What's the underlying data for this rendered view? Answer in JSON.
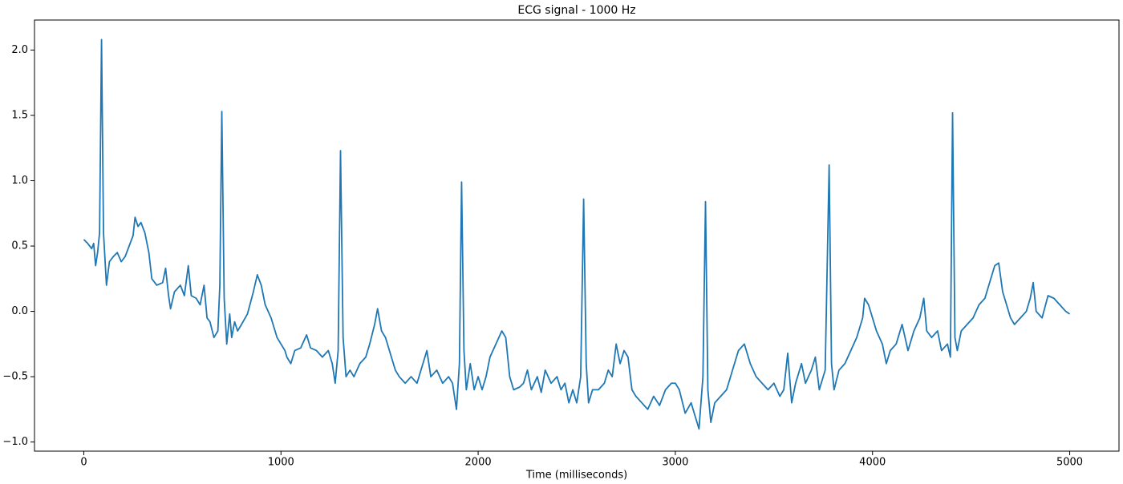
{
  "chart_data": {
    "type": "line",
    "title": "ECG signal - 1000 Hz",
    "xlabel": "Time (milliseconds)",
    "x": [
      0,
      20,
      40,
      50,
      60,
      70,
      80,
      90,
      100,
      115,
      130,
      150,
      170,
      190,
      210,
      230,
      250,
      260,
      275,
      290,
      310,
      330,
      345,
      370,
      400,
      415,
      430,
      440,
      460,
      490,
      510,
      530,
      545,
      570,
      590,
      610,
      625,
      640,
      660,
      680,
      690,
      700,
      712,
      725,
      740,
      750,
      765,
      780,
      800,
      830,
      860,
      880,
      900,
      920,
      950,
      980,
      1000,
      1020,
      1030,
      1050,
      1070,
      1100,
      1130,
      1150,
      1180,
      1210,
      1240,
      1260,
      1275,
      1290,
      1302,
      1315,
      1330,
      1350,
      1370,
      1400,
      1430,
      1450,
      1475,
      1490,
      1510,
      1530,
      1560,
      1580,
      1600,
      1630,
      1660,
      1690,
      1710,
      1740,
      1760,
      1790,
      1820,
      1850,
      1870,
      1890,
      1905,
      1916,
      1928,
      1940,
      1960,
      1980,
      2000,
      2020,
      2040,
      2060,
      2090,
      2120,
      2140,
      2160,
      2180,
      2210,
      2230,
      2250,
      2270,
      2300,
      2320,
      2340,
      2370,
      2400,
      2420,
      2440,
      2460,
      2480,
      2500,
      2520,
      2535,
      2548,
      2560,
      2580,
      2610,
      2640,
      2660,
      2680,
      2700,
      2720,
      2740,
      2760,
      2780,
      2800,
      2830,
      2860,
      2890,
      2920,
      2950,
      2980,
      3000,
      3020,
      3050,
      3080,
      3100,
      3120,
      3140,
      3153,
      3165,
      3180,
      3200,
      3230,
      3260,
      3290,
      3320,
      3350,
      3380,
      3410,
      3440,
      3470,
      3500,
      3530,
      3550,
      3570,
      3590,
      3610,
      3640,
      3660,
      3690,
      3710,
      3730,
      3760,
      3780,
      3792,
      3805,
      3830,
      3860,
      3890,
      3920,
      3950,
      3960,
      3980,
      4000,
      4020,
      4050,
      4070,
      4090,
      4120,
      4150,
      4180,
      4210,
      4240,
      4260,
      4275,
      4300,
      4330,
      4350,
      4380,
      4395,
      4406,
      4418,
      4430,
      4450,
      4480,
      4510,
      4540,
      4570,
      4600,
      4620,
      4640,
      4660,
      4680,
      4700,
      4720,
      4750,
      4780,
      4800,
      4815,
      4830,
      4860,
      4890,
      4920,
      4950,
      4980,
      5000
    ],
    "series": [
      {
        "name": "ECG",
        "color": "#1f77b4",
        "values": [
          0.55,
          0.52,
          0.48,
          0.52,
          0.35,
          0.45,
          0.6,
          2.08,
          0.6,
          0.2,
          0.38,
          0.42,
          0.45,
          0.38,
          0.42,
          0.5,
          0.58,
          0.72,
          0.65,
          0.68,
          0.6,
          0.45,
          0.25,
          0.2,
          0.22,
          0.33,
          0.12,
          0.02,
          0.15,
          0.2,
          0.12,
          0.35,
          0.12,
          0.1,
          0.05,
          0.2,
          -0.05,
          -0.08,
          -0.2,
          -0.15,
          0.2,
          1.53,
          0.1,
          -0.25,
          -0.02,
          -0.2,
          -0.08,
          -0.15,
          -0.1,
          -0.02,
          0.15,
          0.28,
          0.2,
          0.05,
          -0.05,
          -0.2,
          -0.25,
          -0.3,
          -0.35,
          -0.4,
          -0.3,
          -0.28,
          -0.18,
          -0.28,
          -0.3,
          -0.35,
          -0.3,
          -0.4,
          -0.55,
          -0.3,
          1.23,
          -0.2,
          -0.5,
          -0.45,
          -0.5,
          -0.4,
          -0.35,
          -0.25,
          -0.1,
          0.02,
          -0.15,
          -0.2,
          -0.35,
          -0.45,
          -0.5,
          -0.55,
          -0.5,
          -0.55,
          -0.45,
          -0.3,
          -0.5,
          -0.45,
          -0.55,
          -0.5,
          -0.55,
          -0.75,
          -0.4,
          0.99,
          -0.3,
          -0.6,
          -0.4,
          -0.6,
          -0.5,
          -0.6,
          -0.5,
          -0.35,
          -0.25,
          -0.15,
          -0.2,
          -0.5,
          -0.6,
          -0.58,
          -0.55,
          -0.45,
          -0.6,
          -0.5,
          -0.62,
          -0.45,
          -0.55,
          -0.5,
          -0.6,
          -0.55,
          -0.7,
          -0.6,
          -0.7,
          -0.5,
          0.86,
          -0.4,
          -0.7,
          -0.6,
          -0.6,
          -0.55,
          -0.45,
          -0.5,
          -0.25,
          -0.4,
          -0.3,
          -0.35,
          -0.6,
          -0.65,
          -0.7,
          -0.75,
          -0.65,
          -0.72,
          -0.6,
          -0.55,
          -0.55,
          -0.6,
          -0.78,
          -0.7,
          -0.8,
          -0.9,
          -0.5,
          0.84,
          -0.6,
          -0.85,
          -0.7,
          -0.65,
          -0.6,
          -0.45,
          -0.3,
          -0.25,
          -0.4,
          -0.5,
          -0.55,
          -0.6,
          -0.55,
          -0.65,
          -0.6,
          -0.32,
          -0.7,
          -0.55,
          -0.4,
          -0.55,
          -0.45,
          -0.35,
          -0.6,
          -0.45,
          1.12,
          -0.4,
          -0.6,
          -0.45,
          -0.4,
          -0.3,
          -0.2,
          -0.05,
          0.1,
          0.05,
          -0.05,
          -0.15,
          -0.25,
          -0.4,
          -0.3,
          -0.25,
          -0.1,
          -0.3,
          -0.15,
          -0.05,
          0.1,
          -0.15,
          -0.2,
          -0.15,
          -0.3,
          -0.25,
          -0.35,
          1.52,
          -0.2,
          -0.3,
          -0.15,
          -0.1,
          -0.05,
          0.05,
          0.1,
          0.25,
          0.35,
          0.37,
          0.15,
          0.05,
          -0.05,
          -0.1,
          -0.05,
          0.0,
          0.1,
          0.22,
          0.0,
          -0.05,
          0.12,
          0.1,
          0.05,
          0.0,
          -0.02
        ]
      }
    ],
    "xlim": [
      -250,
      5250
    ],
    "ylim": [
      -1.07,
      2.23
    ],
    "xticks": [
      0,
      1000,
      2000,
      3000,
      4000,
      5000
    ],
    "yticks": [
      {
        "value": -1.0,
        "label": "−1.0"
      },
      {
        "value": -0.5,
        "label": "−0.5"
      },
      {
        "value": 0.0,
        "label": "0.0"
      },
      0.5,
      {
        "value": 1.0,
        "label": "1.0"
      },
      1.5,
      {
        "value": 2.0,
        "label": "2.0"
      }
    ],
    "grid": false
  }
}
